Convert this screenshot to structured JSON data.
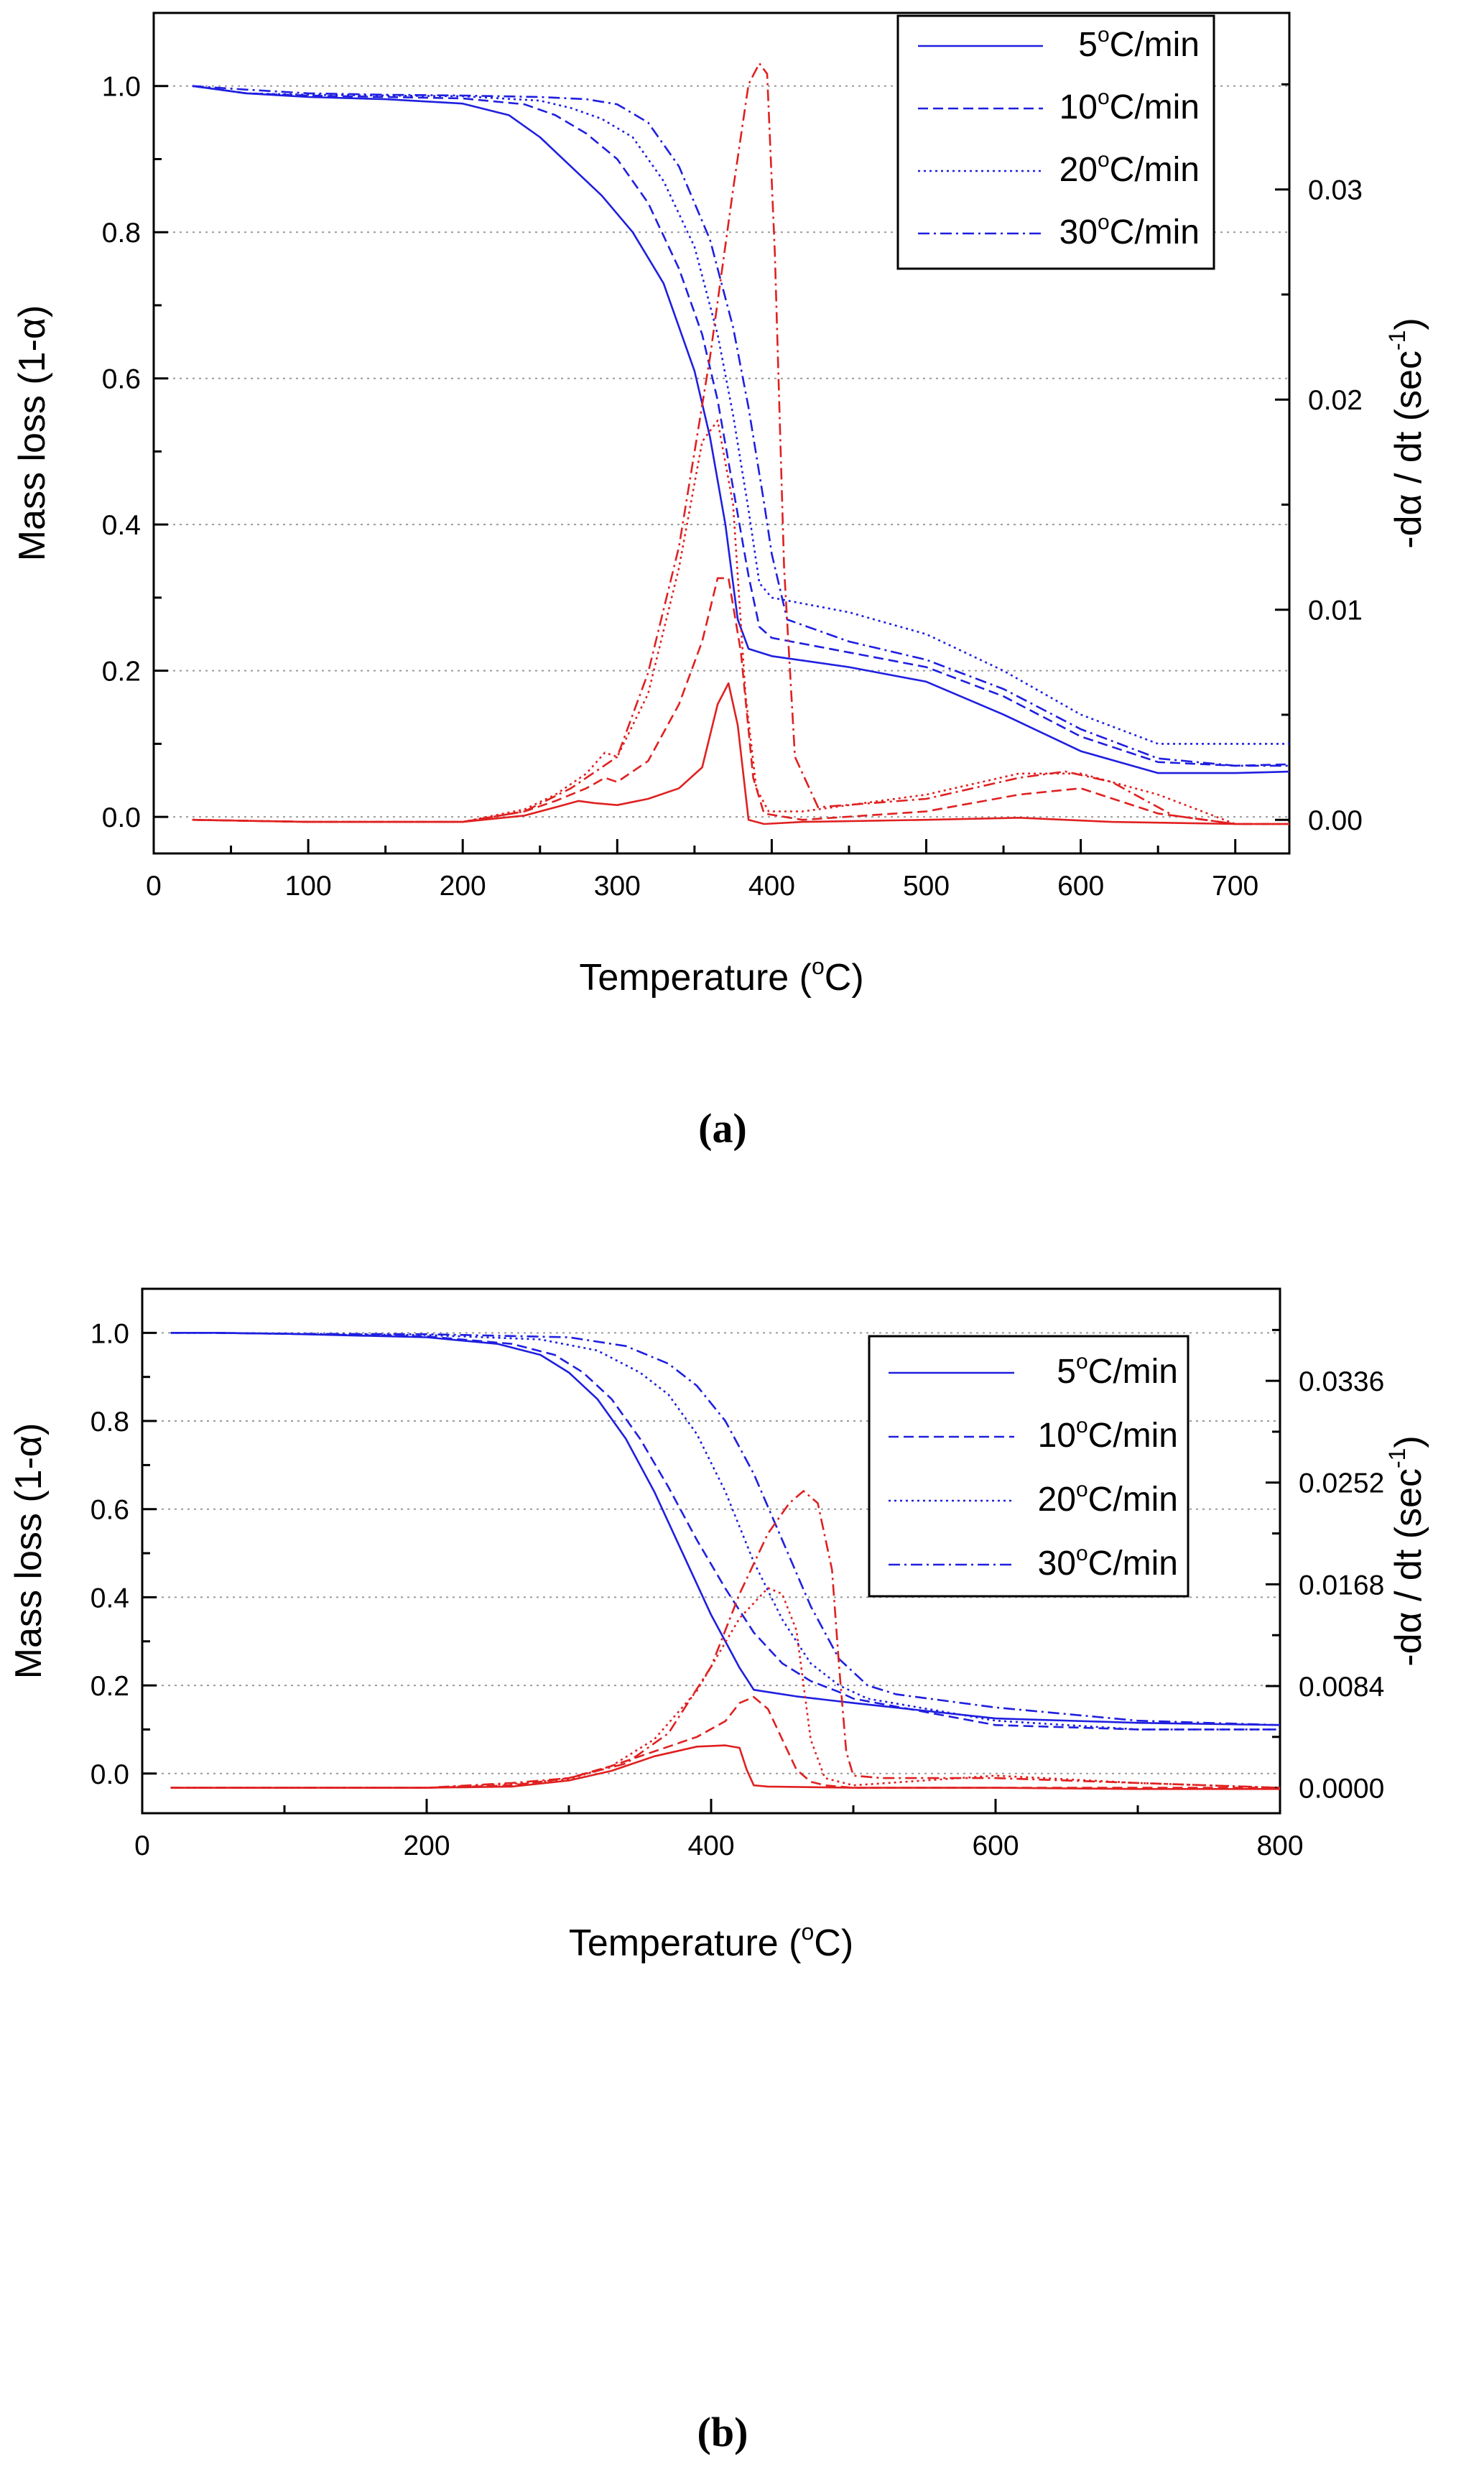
{
  "chart_data": [
    {
      "type": "line",
      "panel_label": "(a)",
      "xlabel": "Temperature (",
      "xlabel_unit": "C)",
      "ylabel": "Mass loss (1-α)",
      "ylabel_right": "-dα / dt (sec",
      "ylabel_right_sup": "-1",
      "ylabel_right_end": ")",
      "xlim": [
        0,
        735
      ],
      "ylim": [
        -0.05,
        1.1
      ],
      "ylim_right": [
        -0.0016,
        0.0384
      ],
      "xticks": [
        "0",
        "100",
        "200",
        "300",
        "400",
        "500",
        "600",
        "700"
      ],
      "xtick_values": [
        0,
        100,
        200,
        300,
        400,
        500,
        600,
        700
      ],
      "yticks": [
        "0.0",
        "0.2",
        "0.4",
        "0.6",
        "0.8",
        "1.0"
      ],
      "ytick_values": [
        0.0,
        0.2,
        0.4,
        0.6,
        0.8,
        1.0
      ],
      "yticks_right": [
        "0.00",
        "0.01",
        "0.02",
        "0.03"
      ],
      "ytick_right_values": [
        0.0,
        0.01,
        0.02,
        0.03
      ],
      "grid": "horizontal dotted",
      "legend": "top-right",
      "colors": {
        "mass": "#1f1fe0",
        "rate": "#e02020"
      },
      "series": [
        {
          "name": "5°C/min",
          "name_value": "5",
          "name_unit": "C/min",
          "dash": "solid",
          "mass": {
            "x": [
              25,
              60,
              100,
              150,
              200,
              230,
              250,
              270,
              290,
              310,
              330,
              350,
              360,
              370,
              378,
              385,
              400,
              450,
              500,
              550,
              600,
              650,
              700,
              735
            ],
            "y": [
              1.0,
              0.99,
              0.985,
              0.982,
              0.976,
              0.96,
              0.93,
              0.89,
              0.85,
              0.8,
              0.73,
              0.61,
              0.52,
              0.4,
              0.27,
              0.23,
              0.22,
              0.205,
              0.185,
              0.14,
              0.09,
              0.06,
              0.06,
              0.062
            ]
          },
          "rate": {
            "x": [
              25,
              100,
              200,
              240,
              260,
              275,
              285,
              300,
              320,
              340,
              355,
              365,
              372,
              378,
              385,
              395,
              420,
              500,
              560,
              620,
              700,
              735
            ],
            "y": [
              0.0,
              -0.0001,
              -0.0001,
              0.0002,
              0.0006,
              0.0009,
              0.0008,
              0.0007,
              0.001,
              0.0015,
              0.0025,
              0.0055,
              0.0065,
              0.0045,
              0.0,
              -0.0002,
              -0.0001,
              0.0,
              0.0001,
              -0.0001,
              -0.0002,
              -0.0002
            ]
          }
        },
        {
          "name": "10°C/min",
          "name_value": "10",
          "name_unit": "C/min",
          "dash": "dashed",
          "mass": {
            "x": [
              25,
              60,
              100,
              150,
              200,
              240,
              260,
              280,
              300,
              320,
              340,
              355,
              365,
              375,
              385,
              392,
              400,
              450,
              500,
              550,
              600,
              650,
              700,
              735
            ],
            "y": [
              1.0,
              0.99,
              0.987,
              0.985,
              0.983,
              0.975,
              0.96,
              0.935,
              0.9,
              0.84,
              0.75,
              0.66,
              0.57,
              0.45,
              0.33,
              0.26,
              0.245,
              0.225,
              0.205,
              0.165,
              0.11,
              0.075,
              0.07,
              0.072
            ]
          },
          "rate": {
            "x": [
              25,
              100,
              200,
              240,
              260,
              280,
              292,
              300,
              320,
              340,
              355,
              365,
              372,
              380,
              388,
              395,
              420,
              500,
              560,
              600,
              650,
              700,
              735
            ],
            "y": [
              0.0,
              -0.0001,
              -0.0001,
              0.0004,
              0.0009,
              0.0015,
              0.002,
              0.0018,
              0.0028,
              0.0055,
              0.0085,
              0.0115,
              0.0115,
              0.008,
              0.002,
              0.0003,
              0.0,
              0.0004,
              0.0012,
              0.0015,
              0.0003,
              -0.0002,
              -0.0002
            ]
          }
        },
        {
          "name": "20°C/min",
          "name_value": "20",
          "name_unit": "C/min",
          "dash": "dotted",
          "mass": {
            "x": [
              25,
              60,
              100,
              150,
              200,
              250,
              270,
              290,
              310,
              330,
              350,
              365,
              375,
              385,
              392,
              400,
              450,
              500,
              550,
              600,
              650,
              700,
              735
            ],
            "y": [
              1.0,
              0.99,
              0.988,
              0.987,
              0.986,
              0.98,
              0.97,
              0.955,
              0.93,
              0.87,
              0.78,
              0.66,
              0.55,
              0.42,
              0.32,
              0.3,
              0.28,
              0.25,
              0.2,
              0.14,
              0.1,
              0.1,
              0.1
            ]
          },
          "rate": {
            "x": [
              25,
              100,
              200,
              240,
              260,
              280,
              292,
              300,
              320,
              340,
              355,
              365,
              375,
              383,
              390,
              398,
              420,
              500,
              560,
              600,
              650,
              700,
              735
            ],
            "y": [
              0.0,
              -0.0001,
              -0.0001,
              0.0005,
              0.0012,
              0.0022,
              0.0032,
              0.003,
              0.006,
              0.012,
              0.018,
              0.019,
              0.015,
              0.006,
              0.0015,
              0.0004,
              0.0004,
              0.0012,
              0.0022,
              0.0022,
              0.0012,
              -0.0002,
              -0.0002
            ]
          }
        },
        {
          "name": "30°C/min",
          "name_value": "30",
          "name_unit": "C/min",
          "dash": "dashdot",
          "mass": {
            "x": [
              25,
              60,
              100,
              150,
              200,
              250,
              280,
              300,
              320,
              340,
              360,
              375,
              385,
              395,
              400,
              410,
              450,
              500,
              550,
              600,
              650,
              700,
              735
            ],
            "y": [
              1.0,
              0.995,
              0.99,
              0.988,
              0.987,
              0.985,
              0.982,
              0.975,
              0.95,
              0.89,
              0.79,
              0.67,
              0.56,
              0.43,
              0.36,
              0.27,
              0.24,
              0.215,
              0.175,
              0.12,
              0.08,
              0.07,
              0.07
            ]
          },
          "rate": {
            "x": [
              25,
              100,
              200,
              240,
              270,
              300,
              320,
              340,
              360,
              375,
              385,
              392,
              397,
              402,
              408,
              415,
              430,
              500,
              560,
              590,
              620,
              660,
              700,
              735
            ],
            "y": [
              0.0,
              -0.0001,
              -0.0001,
              0.0004,
              0.0015,
              0.003,
              0.007,
              0.013,
              0.022,
              0.03,
              0.035,
              0.036,
              0.0355,
              0.027,
              0.012,
              0.003,
              0.0006,
              0.001,
              0.002,
              0.0023,
              0.0018,
              0.0002,
              -0.0002,
              -0.0002
            ]
          }
        }
      ]
    },
    {
      "type": "line",
      "panel_label": "(b)",
      "xlabel": "Temperature (",
      "xlabel_unit": "C)",
      "ylabel": "Mass loss (1-α)",
      "ylabel_right": "-dα / dt (sec",
      "ylabel_right_sup": "-1",
      "ylabel_right_end": ")",
      "xlim": [
        0,
        800
      ],
      "ylim": [
        -0.09,
        1.1
      ],
      "ylim_right": [
        -0.0021,
        0.0412
      ],
      "xticks": [
        "0",
        "200",
        "400",
        "600",
        "800"
      ],
      "xtick_values": [
        0,
        200,
        400,
        600,
        800
      ],
      "yticks": [
        "0.0",
        "0.2",
        "0.4",
        "0.6",
        "0.8",
        "1.0"
      ],
      "ytick_values": [
        0.0,
        0.2,
        0.4,
        0.6,
        0.8,
        1.0
      ],
      "yticks_right": [
        "0.0000",
        "0.0084",
        "0.0168",
        "0.0252",
        "0.0336"
      ],
      "ytick_right_values": [
        0.0,
        0.0084,
        0.0168,
        0.0252,
        0.0336
      ],
      "grid": "horizontal dotted",
      "legend": "top-right",
      "colors": {
        "mass": "#1f1fe0",
        "rate": "#e02020"
      },
      "series": [
        {
          "name": "5°C/min",
          "name_value": "5",
          "name_unit": "C/min",
          "dash": "solid",
          "mass": {
            "x": [
              20,
              50,
              100,
              200,
              250,
              280,
              300,
              320,
              340,
              360,
              380,
              400,
              420,
              430,
              440,
              460,
              500,
              600,
              700,
              800
            ],
            "y": [
              1.0,
              1.0,
              0.998,
              0.99,
              0.975,
              0.95,
              0.91,
              0.85,
              0.76,
              0.64,
              0.5,
              0.36,
              0.24,
              0.19,
              0.185,
              0.175,
              0.16,
              0.125,
              0.115,
              0.11
            ]
          },
          "rate": {
            "x": [
              20,
              100,
              200,
              260,
              300,
              330,
              360,
              390,
              410,
              420,
              425,
              430,
              440,
              500,
              600,
              700,
              800
            ],
            "y": [
              0.0,
              0.0,
              0.0,
              0.0001,
              0.0006,
              0.0014,
              0.0026,
              0.0034,
              0.0035,
              0.0033,
              0.0015,
              0.0002,
              0.0001,
              0.0,
              0.0,
              -0.0001,
              -0.0001
            ]
          }
        },
        {
          "name": "10°C/min",
          "name_value": "10",
          "name_unit": "C/min",
          "dash": "dashed",
          "mass": {
            "x": [
              20,
              50,
              100,
              200,
              260,
              290,
              310,
              330,
              350,
              370,
              390,
              410,
              430,
              450,
              470,
              490,
              500,
              600,
              700,
              800
            ],
            "y": [
              1.0,
              1.0,
              0.998,
              0.992,
              0.975,
              0.95,
              0.91,
              0.85,
              0.76,
              0.65,
              0.53,
              0.42,
              0.32,
              0.25,
              0.21,
              0.185,
              0.17,
              0.11,
              0.1,
              0.1
            ]
          },
          "rate": {
            "x": [
              20,
              100,
              200,
              260,
              300,
              330,
              360,
              390,
              410,
              420,
              430,
              440,
              450,
              460,
              470,
              480,
              500,
              600,
              700,
              800
            ],
            "y": [
              0.0,
              0.0,
              0.0,
              0.0002,
              0.0008,
              0.0018,
              0.003,
              0.0042,
              0.0055,
              0.007,
              0.0075,
              0.0065,
              0.004,
              0.0015,
              0.0005,
              0.0002,
              0.0,
              0.0,
              0.0,
              0.0
            ]
          }
        },
        {
          "name": "20°C/min",
          "name_value": "20",
          "name_unit": "C/min",
          "dash": "dotted",
          "mass": {
            "x": [
              20,
              50,
              100,
              200,
              280,
              320,
              350,
              370,
              390,
              410,
              430,
              450,
              470,
              490,
              510,
              600,
              700,
              800
            ],
            "y": [
              1.0,
              1.0,
              0.998,
              0.995,
              0.985,
              0.96,
              0.91,
              0.86,
              0.77,
              0.64,
              0.48,
              0.35,
              0.25,
              0.2,
              0.17,
              0.12,
              0.1,
              0.1
            ]
          },
          "rate": {
            "x": [
              20,
              100,
              200,
              260,
              300,
              330,
              360,
              390,
              420,
              440,
              450,
              460,
              470,
              480,
              500,
              600,
              700,
              800
            ],
            "y": [
              0.0,
              0.0,
              0.0,
              0.0003,
              0.0007,
              0.0018,
              0.004,
              0.008,
              0.014,
              0.0165,
              0.016,
              0.013,
              0.004,
              0.0008,
              0.0002,
              0.001,
              0.0004,
              0.0
            ]
          }
        },
        {
          "name": "30°C/min",
          "name_value": "30",
          "name_unit": "C/min",
          "dash": "dashdot",
          "mass": {
            "x": [
              20,
              50,
              100,
              200,
              300,
              340,
              370,
              390,
              410,
              430,
              450,
              470,
              490,
              510,
              530,
              600,
              700,
              800
            ],
            "y": [
              1.0,
              1.0,
              0.998,
              0.997,
              0.99,
              0.97,
              0.93,
              0.88,
              0.8,
              0.68,
              0.53,
              0.38,
              0.26,
              0.2,
              0.18,
              0.15,
              0.12,
              0.11
            ]
          },
          "rate": {
            "x": [
              20,
              100,
              200,
              260,
              300,
              340,
              370,
              400,
              420,
              440,
              455,
              465,
              475,
              485,
              490,
              495,
              500,
              520,
              600,
              700,
              800
            ],
            "y": [
              0.0,
              0.0,
              0.0,
              0.0004,
              0.0008,
              0.002,
              0.0045,
              0.01,
              0.016,
              0.021,
              0.0235,
              0.0245,
              0.0235,
              0.018,
              0.01,
              0.003,
              0.001,
              0.0008,
              0.0008,
              0.0004,
              0.0
            ]
          }
        }
      ]
    }
  ]
}
